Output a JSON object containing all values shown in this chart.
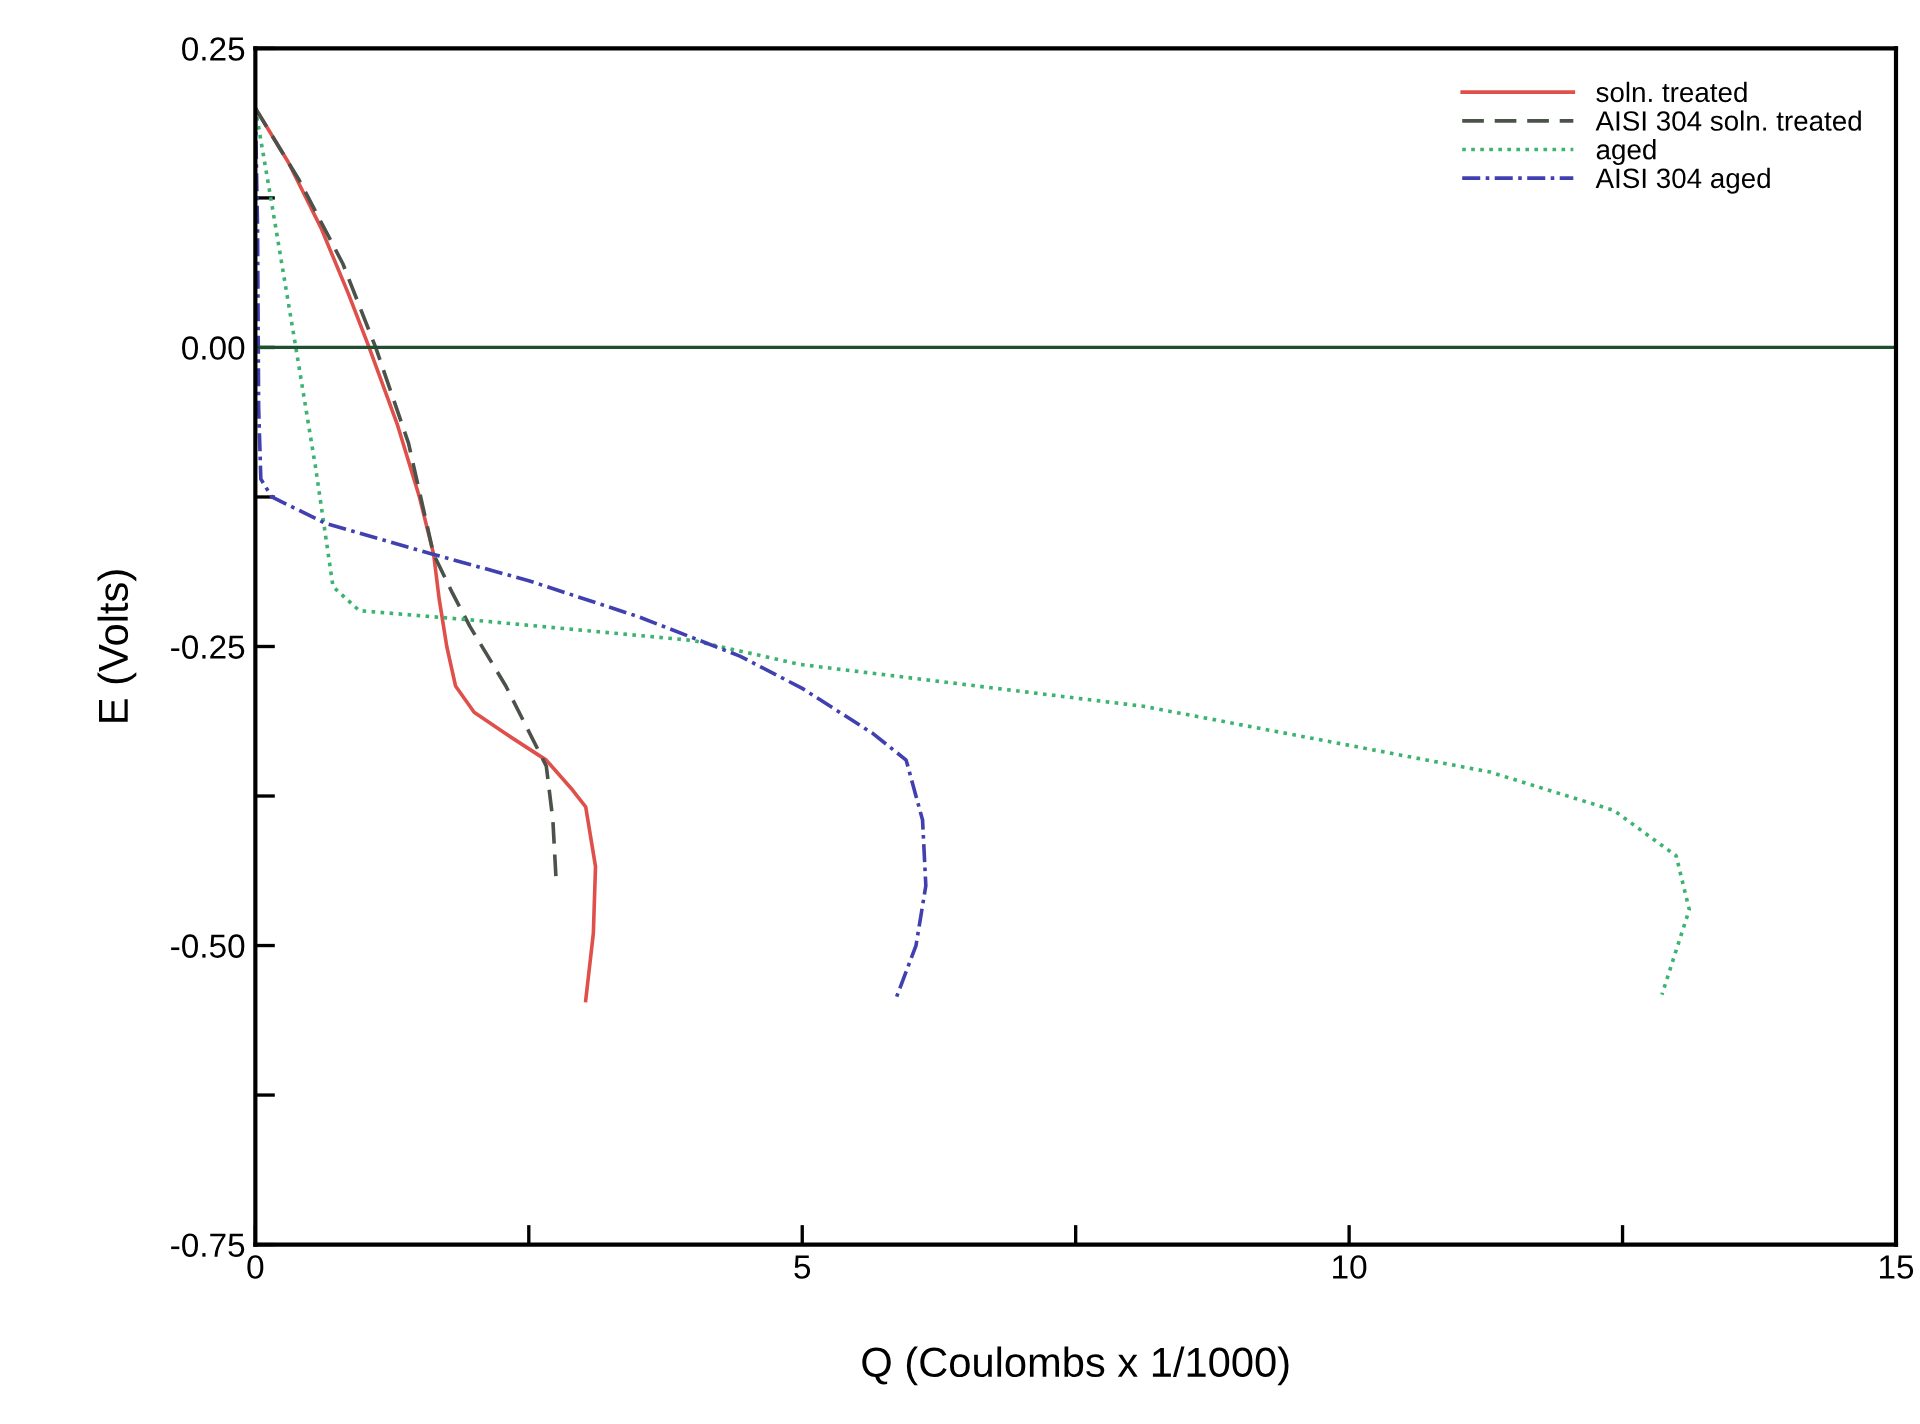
{
  "chart_data": {
    "type": "line",
    "xlabel": "Q (Coulombs x 1/1000)",
    "ylabel": "E (Volts)",
    "xlim": [
      0,
      15
    ],
    "ylim": [
      -0.75,
      0.25
    ],
    "xticks": [
      0,
      {
        "value": 2.5,
        "label": null
      },
      5,
      {
        "value": 7.5,
        "label": null
      },
      10,
      {
        "value": 12.5,
        "label": null
      },
      15
    ],
    "yticks": [
      {
        "value": -0.75,
        "label": "-0.75"
      },
      {
        "value": -0.625,
        "label": null
      },
      {
        "value": -0.5,
        "label": "-0.50"
      },
      {
        "value": -0.375,
        "label": null
      },
      {
        "value": -0.25,
        "label": "-0.25"
      },
      {
        "value": -0.125,
        "label": null
      },
      {
        "value": 0,
        "label": "0.00"
      },
      {
        "value": 0.125,
        "label": null
      },
      {
        "value": 0.25,
        "label": "0.25"
      }
    ],
    "grid": false,
    "legend": "top right",
    "ref_lines": [
      {
        "axis": "y",
        "value": 0,
        "color": "#1f4f2f",
        "line_style": "solid"
      }
    ],
    "series": [
      {
        "name": "soln. treated",
        "color": "#e0504a",
        "line_style": "solid",
        "x": [
          0,
          0.3,
          0.6,
          0.85,
          1.04,
          1.3,
          1.5,
          1.63,
          1.68,
          1.75,
          1.83,
          2.0,
          2.29,
          2.66,
          2.9,
          3.02,
          3.11,
          3.09,
          3.02
        ],
        "values": [
          0.2,
          0.155,
          0.1,
          0.045,
          0,
          -0.065,
          -0.125,
          -0.173,
          -0.21,
          -0.25,
          -0.283,
          -0.305,
          -0.323,
          -0.345,
          -0.37,
          -0.384,
          -0.434,
          -0.49,
          -0.546
        ]
      },
      {
        "name": "AISI 304 soln. treated",
        "color": "#4a524a",
        "line_style": "dashed",
        "x": [
          0,
          0.4,
          0.8,
          1.1,
          1.4,
          1.63,
          1.8,
          1.96,
          2.29,
          2.66,
          2.72,
          2.75
        ],
        "values": [
          0.2,
          0.14,
          0.07,
          0,
          -0.08,
          -0.173,
          -0.205,
          -0.233,
          -0.283,
          -0.35,
          -0.395,
          -0.446
        ]
      },
      {
        "name": "aged",
        "color": "#3cb371",
        "line_style": "dotted",
        "x": [
          0,
          0.15,
          0.37,
          0.55,
          0.71,
          0.95,
          2.0,
          4.0,
          4.98,
          8.12,
          11.29,
          12.42,
          12.99,
          13.11,
          12.86
        ],
        "values": [
          0.2,
          0.12,
          0,
          -0.1,
          -0.2,
          -0.22,
          -0.228,
          -0.245,
          -0.265,
          -0.3,
          -0.355,
          -0.387,
          -0.425,
          -0.47,
          -0.541
        ]
      },
      {
        "name": "AISI 304 aged",
        "color": "#4040b0",
        "line_style": "dashdot",
        "x": [
          0,
          0.02,
          0.03,
          0.05,
          0.15,
          0.64,
          1.63,
          2.5,
          3.5,
          4.43,
          5.0,
          5.65,
          5.95,
          6.1,
          6.13,
          6.04,
          5.85
        ],
        "values": [
          0.2,
          0.1,
          -0.05,
          -0.11,
          -0.125,
          -0.147,
          -0.173,
          -0.195,
          -0.225,
          -0.258,
          -0.285,
          -0.323,
          -0.345,
          -0.395,
          -0.45,
          -0.5,
          -0.546
        ]
      }
    ]
  }
}
